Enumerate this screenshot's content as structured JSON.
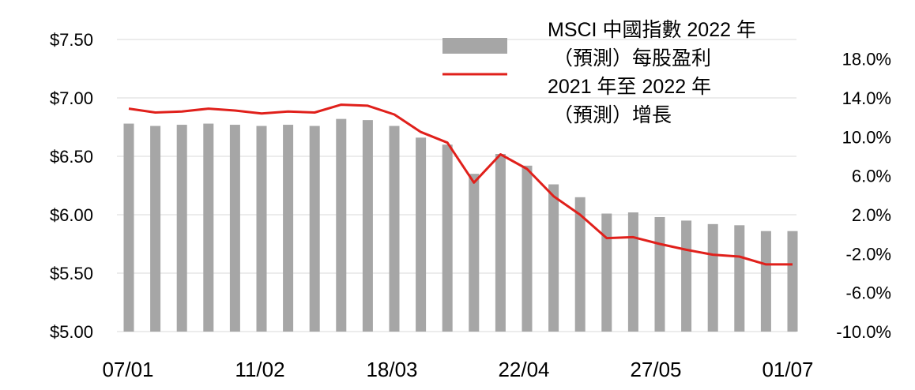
{
  "chart_data": {
    "type": "bar+line",
    "x_tick_labels": [
      "07/01",
      "11/02",
      "18/03",
      "22/04",
      "27/05",
      "01/07"
    ],
    "y_left": {
      "ticks": [
        "$7.50",
        "$7.00",
        "$6.50",
        "$6.00",
        "$5.50",
        "$5.00"
      ],
      "ylim": [
        5.0,
        7.5
      ]
    },
    "y_right": {
      "ticks": [
        "18.0%",
        "14.0%",
        "10.0%",
        "6.0%",
        "2.0%",
        "-2.0%",
        "-6.0%",
        "-10.0%"
      ],
      "ylim": [
        -10.0,
        20.0
      ]
    },
    "series": [
      {
        "name": "MSCI 中國指數 2022 年（預測）每股盈利",
        "kind": "bar",
        "color": "#a6a6a6",
        "axis": "left",
        "values": [
          6.78,
          6.76,
          6.77,
          6.78,
          6.77,
          6.76,
          6.77,
          6.76,
          6.82,
          6.81,
          6.76,
          6.66,
          6.6,
          6.35,
          6.52,
          6.42,
          6.26,
          6.15,
          6.01,
          6.02,
          5.98,
          5.95,
          5.92,
          5.91,
          5.86,
          5.86
        ]
      },
      {
        "name": "2021 年至 2022 年（預測）增長",
        "kind": "line",
        "color": "#e0201b",
        "axis": "right",
        "values": [
          12.9,
          12.5,
          12.6,
          12.9,
          12.7,
          12.4,
          12.6,
          12.5,
          13.3,
          13.2,
          12.3,
          10.5,
          9.4,
          5.3,
          8.2,
          6.7,
          3.9,
          2.0,
          -0.4,
          -0.3,
          -1.0,
          -1.6,
          -2.1,
          -2.3,
          -3.1,
          -3.1
        ]
      }
    ],
    "legend": {
      "position": "top-right",
      "entries": [
        {
          "lines": [
            "MSCI 中國指數 2022 年",
            "（預測）每股盈利"
          ]
        },
        {
          "lines": [
            "2021 年至 2022 年",
            "（預測）增長"
          ]
        }
      ]
    },
    "grid": "horizontal"
  }
}
